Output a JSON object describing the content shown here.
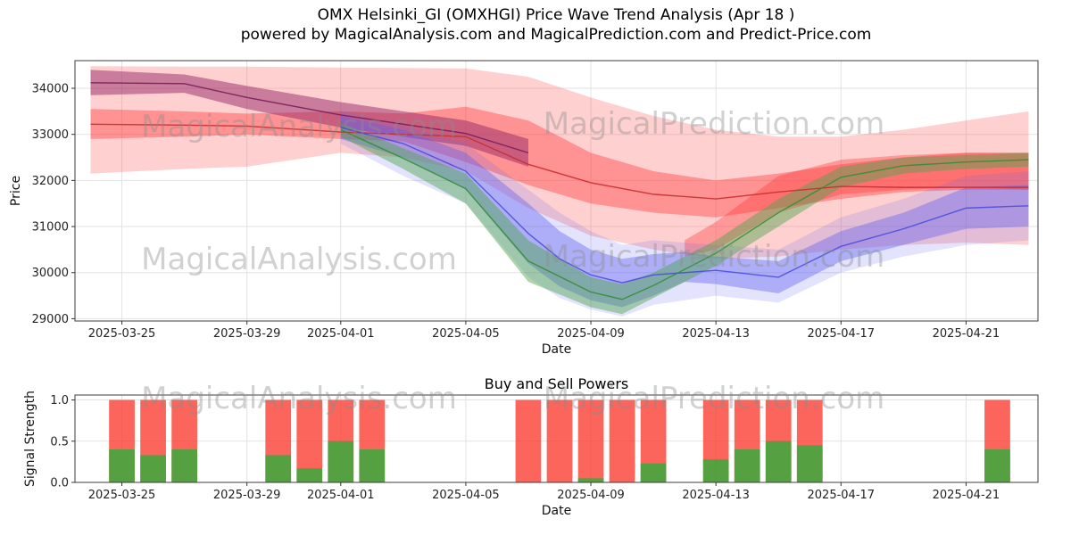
{
  "title_line1": "OMX Helsinki_GI (OMXHGI) Price Wave Trend Analysis (Apr 18 )",
  "title_line2": "powered by MagicalAnalysis.com and MagicalPrediction.com and Predict-Price.com",
  "watermarks": {
    "analysis": "MagicalAnalysis.com",
    "prediction": "MagicalPrediction.com"
  },
  "chart_data": [
    {
      "type": "area",
      "title": "",
      "xlabel": "Date",
      "ylabel": "Price",
      "x_domain": [
        0.5,
        31.3
      ],
      "ylim": [
        28950,
        34600
      ],
      "grid": true,
      "x_ticks": [
        {
          "pos": 2,
          "label": "2025-03-25"
        },
        {
          "pos": 6,
          "label": "2025-03-29"
        },
        {
          "pos": 9,
          "label": "2025-04-01"
        },
        {
          "pos": 13,
          "label": "2025-04-05"
        },
        {
          "pos": 17,
          "label": "2025-04-09"
        },
        {
          "pos": 21,
          "label": "2025-04-13"
        },
        {
          "pos": 25,
          "label": "2025-04-17"
        },
        {
          "pos": 29,
          "label": "2025-04-21"
        }
      ],
      "y_ticks": [
        {
          "pos": 29000,
          "label": "29000"
        },
        {
          "pos": 30000,
          "label": "30000"
        },
        {
          "pos": 31000,
          "label": "31000"
        },
        {
          "pos": 32000,
          "label": "32000"
        },
        {
          "pos": 33000,
          "label": "33000"
        },
        {
          "pos": 34000,
          "label": "34000"
        }
      ],
      "bands": [
        {
          "name": "outer-pink-band",
          "color": "rgba(255,85,85,0.28)",
          "x": [
            1,
            4,
            6,
            9,
            11,
            13,
            15,
            17,
            19,
            21,
            23,
            25,
            27,
            29,
            31
          ],
          "upper": [
            34480,
            34470,
            34470,
            34450,
            34440,
            34430,
            34250,
            33800,
            33400,
            33100,
            32950,
            32950,
            33100,
            33300,
            33500
          ],
          "lower": [
            32150,
            32250,
            32300,
            32600,
            32500,
            32200,
            31400,
            30800,
            30500,
            30300,
            30350,
            30500,
            30600,
            30650,
            30600
          ]
        },
        {
          "name": "inner-red-band",
          "color": "rgba(255,60,60,0.42)",
          "x": [
            1,
            4,
            6,
            9,
            11,
            13,
            15,
            17,
            19,
            21,
            23,
            25,
            27,
            29,
            31
          ],
          "upper": [
            33550,
            33500,
            33450,
            33500,
            33450,
            33600,
            33300,
            32600,
            32200,
            32000,
            32150,
            32350,
            32500,
            32600,
            32600
          ],
          "lower": [
            32900,
            32950,
            33000,
            32900,
            32850,
            32400,
            31900,
            31500,
            31300,
            31200,
            31400,
            31600,
            31750,
            31800,
            31800
          ]
        },
        {
          "name": "rising-red-band",
          "color": "rgba(255,60,60,0.38)",
          "x": [
            20,
            21,
            23,
            25,
            27,
            29,
            31
          ],
          "upper": [
            30700,
            31100,
            32100,
            32450,
            32550,
            32600,
            32600
          ],
          "lower": [
            30350,
            30500,
            31300,
            31700,
            31800,
            31850,
            31800
          ]
        },
        {
          "name": "purple-band",
          "color": "rgba(150,40,105,0.50)",
          "x": [
            1,
            4,
            6,
            9,
            11,
            13,
            15
          ],
          "upper": [
            34400,
            34300,
            34050,
            33700,
            33500,
            33300,
            32900
          ],
          "lower": [
            33850,
            33900,
            33550,
            33150,
            32950,
            32750,
            32300
          ]
        },
        {
          "name": "blue-outer-band",
          "color": "rgba(100,100,245,0.18)",
          "x": [
            9,
            11,
            13,
            15,
            16,
            17,
            18,
            19,
            21,
            23,
            25,
            27,
            29,
            31
          ],
          "upper": [
            33500,
            33200,
            32800,
            31800,
            31300,
            30900,
            30600,
            30700,
            30600,
            30500,
            31200,
            31600,
            32100,
            32200
          ],
          "lower": [
            32800,
            32100,
            31500,
            29900,
            29450,
            29200,
            29050,
            29300,
            29500,
            29350,
            30000,
            30350,
            30600,
            30700
          ]
        },
        {
          "name": "blue-band",
          "color": "rgba(95,95,240,0.40)",
          "x": [
            9,
            11,
            13,
            15,
            16,
            17,
            18,
            19,
            20,
            21,
            23,
            25,
            27,
            29,
            31
          ],
          "upper": [
            33400,
            33100,
            32600,
            31500,
            30900,
            30500,
            30300,
            30400,
            30450,
            30350,
            30250,
            30900,
            31300,
            31850,
            31900
          ],
          "lower": [
            32900,
            32500,
            31800,
            30200,
            29700,
            29400,
            29250,
            29500,
            29800,
            29750,
            29550,
            30250,
            30600,
            30950,
            31000
          ]
        },
        {
          "name": "green-band",
          "color": "rgba(75,165,75,0.45)",
          "x": [
            9,
            11,
            13,
            15,
            17,
            18,
            19,
            21,
            23,
            25,
            27,
            29,
            31
          ],
          "upper": [
            33250,
            32700,
            32150,
            30700,
            29900,
            29750,
            30000,
            30700,
            31600,
            32300,
            32500,
            32550,
            32600
          ],
          "lower": [
            32950,
            32250,
            31500,
            29800,
            29250,
            29100,
            29450,
            30150,
            31000,
            31850,
            32150,
            32250,
            32300
          ]
        }
      ],
      "lines": [
        {
          "name": "purple-trend-line",
          "color": "rgba(120,30,90,0.9)",
          "x": [
            1,
            4,
            6,
            9,
            11,
            13,
            15
          ],
          "y": [
            34120,
            34100,
            33800,
            33420,
            33220,
            33020,
            32600
          ]
        },
        {
          "name": "red-trend-line",
          "color": "rgba(200,45,45,0.9)",
          "x": [
            1,
            4,
            6,
            9,
            11,
            13,
            15,
            17,
            19,
            21,
            23,
            25,
            27,
            29,
            31
          ],
          "y": [
            33220,
            33200,
            33180,
            33050,
            33000,
            32950,
            32350,
            31950,
            31700,
            31600,
            31750,
            31870,
            31850,
            31850,
            31850
          ]
        },
        {
          "name": "blue-trend-line",
          "color": "rgba(70,70,220,0.85)",
          "x": [
            9,
            11,
            13,
            15,
            16,
            17,
            18,
            19,
            21,
            23,
            25,
            27,
            29,
            31
          ],
          "y": [
            33150,
            32800,
            32200,
            30850,
            30300,
            29950,
            29780,
            29950,
            30050,
            29900,
            30570,
            30950,
            31400,
            31450
          ]
        },
        {
          "name": "green-trend-line",
          "color": "rgba(50,140,50,0.85)",
          "x": [
            9,
            11,
            13,
            15,
            17,
            18,
            19,
            21,
            23,
            25,
            27,
            29,
            31
          ],
          "y": [
            33100,
            32480,
            31820,
            30250,
            29580,
            29420,
            29720,
            30420,
            31300,
            32070,
            32320,
            32400,
            32450
          ]
        }
      ]
    },
    {
      "type": "bar",
      "title": "Buy and Sell Powers",
      "xlabel": "Date",
      "ylabel": "Signal Strength",
      "x_domain": [
        0.5,
        31.3
      ],
      "ylim": [
        0,
        1.06
      ],
      "grid": true,
      "sell_color": "rgba(250,62,50,0.80)",
      "buy_color": "rgba(62,168,62,0.88)",
      "x_ticks": [
        {
          "pos": 2,
          "label": "2025-03-25"
        },
        {
          "pos": 6,
          "label": "2025-03-29"
        },
        {
          "pos": 9,
          "label": "2025-04-01"
        },
        {
          "pos": 13,
          "label": "2025-04-05"
        },
        {
          "pos": 17,
          "label": "2025-04-09"
        },
        {
          "pos": 21,
          "label": "2025-04-13"
        },
        {
          "pos": 25,
          "label": "2025-04-17"
        },
        {
          "pos": 29,
          "label": "2025-04-21"
        }
      ],
      "y_ticks": [
        {
          "pos": 0,
          "label": "0.0"
        },
        {
          "pos": 0.5,
          "label": "0.5"
        },
        {
          "pos": 1,
          "label": "1.0"
        }
      ],
      "bars": [
        {
          "date": "2025-03-25",
          "day": 2,
          "sell": 1.0,
          "buy": 0.4
        },
        {
          "date": "2025-03-26",
          "day": 3,
          "sell": 1.0,
          "buy": 0.33
        },
        {
          "date": "2025-03-27",
          "day": 4,
          "sell": 1.0,
          "buy": 0.4
        },
        {
          "date": "2025-03-30",
          "day": 7,
          "sell": 1.0,
          "buy": 0.33
        },
        {
          "date": "2025-03-31",
          "day": 8,
          "sell": 1.0,
          "buy": 0.17
        },
        {
          "date": "2025-04-01",
          "day": 9,
          "sell": 1.0,
          "buy": 0.5
        },
        {
          "date": "2025-04-02",
          "day": 10,
          "sell": 1.0,
          "buy": 0.4
        },
        {
          "date": "2025-04-07",
          "day": 15,
          "sell": 1.0,
          "buy": 0.0
        },
        {
          "date": "2025-04-08",
          "day": 16,
          "sell": 1.0,
          "buy": 0.0
        },
        {
          "date": "2025-04-09",
          "day": 17,
          "sell": 1.0,
          "buy": 0.05
        },
        {
          "date": "2025-04-10",
          "day": 18,
          "sell": 1.0,
          "buy": 0.0
        },
        {
          "date": "2025-04-11",
          "day": 19,
          "sell": 1.0,
          "buy": 0.23
        },
        {
          "date": "2025-04-13",
          "day": 21,
          "sell": 1.0,
          "buy": 0.28
        },
        {
          "date": "2025-04-14",
          "day": 22,
          "sell": 1.0,
          "buy": 0.4
        },
        {
          "date": "2025-04-15",
          "day": 23,
          "sell": 1.0,
          "buy": 0.5
        },
        {
          "date": "2025-04-16",
          "day": 24,
          "sell": 1.0,
          "buy": 0.45
        },
        {
          "date": "2025-04-22",
          "day": 30,
          "sell": 1.0,
          "buy": 0.4
        }
      ]
    }
  ]
}
